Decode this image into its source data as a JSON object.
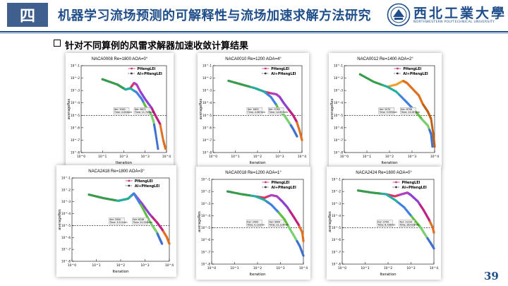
{
  "header": {
    "section_number": "四",
    "title": "机器学习流场预测的可解释性与流场加速求解方法研究",
    "university_name": "西北工業大學",
    "university_english": "NORTHWESTERN POLYTECHNICAL UNIVERSITY"
  },
  "subtitle": "针对不同算例的风雷求解器加速收敛计算结果",
  "page_number": "39",
  "colors": {
    "brand": "#1f4e8a",
    "section_box": "#3f5f8f"
  },
  "chart_data": [
    {
      "type": "scatter",
      "title": "NACA0008  Re=1800  AOA=0°",
      "xlabel": "Iteration",
      "ylabel": "averageRes",
      "xlim": [
        1,
        10000
      ],
      "ylim": [
        1e-08,
        0.1
      ],
      "legend": [
        "PHengLEI",
        "AI+PHengLEI"
      ],
      "threshold": 1e-05,
      "annotations": [
        {
          "label": "Iter: 2000\nTime: 4.004min"
        },
        {
          "label": "Iter: 6872\nTime: 11.749min"
        }
      ],
      "series": [
        {
          "name": "PHengLEI",
          "points": [
            [
              10,
              0.008
            ],
            [
              50,
              0.003
            ],
            [
              120,
              0.0012
            ],
            [
              200,
              0.0015
            ],
            [
              300,
              0.004
            ],
            [
              400,
              0.003
            ],
            [
              600,
              0.0008
            ],
            [
              1000,
              0.0002
            ],
            [
              2000,
              4e-05
            ],
            [
              3000,
              1e-05
            ],
            [
              5000,
              2e-06
            ],
            [
              7000,
              1e-07
            ],
            [
              9000,
              2e-08
            ]
          ]
        },
        {
          "name": "AI+PHengLEI",
          "points": [
            [
              10,
              0.008
            ],
            [
              50,
              0.003
            ],
            [
              120,
              0.0012
            ],
            [
              200,
              0.0015
            ],
            [
              400,
              0.0007
            ],
            [
              700,
              0.0002
            ],
            [
              1000,
              6e-05
            ],
            [
              1500,
              2e-05
            ],
            [
              2000,
              1e-05
            ],
            [
              2500,
              3e-06
            ],
            [
              3000,
              5e-07
            ],
            [
              4000,
              2e-08
            ]
          ]
        }
      ]
    },
    {
      "type": "scatter",
      "title": "NACA0010  Re=1200  AOA=4°",
      "xlabel": "Iteration",
      "ylabel": "averageRes",
      "xlim": [
        1,
        10000
      ],
      "ylim": [
        1e-08,
        0.1
      ],
      "legend": [
        "PHengLEI",
        "AI+PHengLEI"
      ],
      "threshold": 1e-05,
      "annotations": [
        {
          "label": "Iter: 1600\nTime: 4.067min"
        },
        {
          "label": "Iter: 5765\nTime: 14.653min"
        }
      ],
      "series": [
        {
          "name": "PHengLEI",
          "points": [
            [
              5,
              0.006
            ],
            [
              20,
              0.003
            ],
            [
              80,
              0.0015
            ],
            [
              200,
              0.0008
            ],
            [
              400,
              0.0006
            ],
            [
              700,
              0.0005
            ],
            [
              1000,
              0.0003
            ],
            [
              1500,
              0.0001
            ],
            [
              2500,
              3e-05
            ],
            [
              4000,
              1e-05
            ],
            [
              5800,
              3e-06
            ],
            [
              8000,
              5e-07
            ],
            [
              10000,
              1e-07
            ]
          ]
        },
        {
          "name": "AI+PHengLEI",
          "points": [
            [
              5,
              0.006
            ],
            [
              20,
              0.003
            ],
            [
              80,
              0.0015
            ],
            [
              200,
              0.0008
            ],
            [
              400,
              0.0003
            ],
            [
              700,
              7e-05
            ],
            [
              1000,
              2e-05
            ],
            [
              1600,
              1e-05
            ],
            [
              2500,
              3e-06
            ],
            [
              4000,
              8e-07
            ],
            [
              6000,
              2e-07
            ]
          ]
        }
      ]
    },
    {
      "type": "scatter",
      "title": "NACA0012  Re=1400  AOA=2°",
      "xlabel": "Iteration",
      "ylabel": "averageRes",
      "xlim": [
        1,
        10000
      ],
      "ylim": [
        1e-08,
        0.1
      ],
      "legend": [
        "PHengLEI",
        "AI+PHengLEI"
      ],
      "threshold": 1e-05,
      "annotations": [
        {
          "label": "Iter: 2070\nTime: 3.993min"
        },
        {
          "label": "Iter: 6798\nTime: 13.067min"
        }
      ],
      "series": [
        {
          "name": "PHengLEI",
          "points": [
            [
              5,
              0.02
            ],
            [
              20,
              0.005
            ],
            [
              80,
              0.002
            ],
            [
              200,
              0.003
            ],
            [
              400,
              0.006
            ],
            [
              600,
              0.004
            ],
            [
              1000,
              0.0015
            ],
            [
              2000,
              0.0004
            ],
            [
              3000,
              8e-05
            ],
            [
              5000,
              2e-05
            ],
            [
              7000,
              5e-06
            ],
            [
              9000,
              2e-07
            ],
            [
              10000,
              3e-08
            ]
          ]
        },
        {
          "name": "AI+PHengLEI",
          "points": [
            [
              5,
              0.02
            ],
            [
              20,
              0.005
            ],
            [
              80,
              0.002
            ],
            [
              200,
              0.0008
            ],
            [
              500,
              0.00015
            ],
            [
              1000,
              4e-05
            ],
            [
              2000,
              1e-05
            ],
            [
              3000,
              4e-06
            ],
            [
              5000,
              1.5e-06
            ],
            [
              7000,
              3e-07
            ],
            [
              8000,
              3e-08
            ]
          ]
        }
      ]
    },
    {
      "type": "scatter",
      "title": "NACA2418  Re=1800 AOA=3°",
      "xlabel": "Iteration",
      "ylabel": "averageRes",
      "xlim": [
        1,
        10000
      ],
      "ylim": [
        1e-08,
        0.1
      ],
      "legend": [
        "PHengLEI",
        "AI+PHengLEI"
      ],
      "threshold": 1e-05,
      "annotations": [
        {
          "label": "Iter: 2000\nTime: 3.211min"
        },
        {
          "label": "Iter: 8248\nTime: 20.228min"
        }
      ],
      "series": [
        {
          "name": "PHengLEI",
          "points": [
            [
              5,
              0.004
            ],
            [
              20,
              0.002
            ],
            [
              80,
              0.0012
            ],
            [
              200,
              0.0018
            ],
            [
              350,
              0.005
            ],
            [
              500,
              0.002
            ],
            [
              800,
              0.0006
            ],
            [
              1500,
              0.0001
            ],
            [
              3000,
              2e-05
            ],
            [
              5000,
              5e-06
            ],
            [
              8000,
              1e-06
            ],
            [
              10000,
              3e-07
            ]
          ]
        },
        {
          "name": "AI+PHengLEI",
          "points": [
            [
              5,
              0.004
            ],
            [
              20,
              0.002
            ],
            [
              80,
              0.0012
            ],
            [
              200,
              0.0018
            ],
            [
              350,
              0.005
            ],
            [
              500,
              0.0015
            ],
            [
              800,
              0.0003
            ],
            [
              1200,
              6e-05
            ],
            [
              2000,
              1e-05
            ],
            [
              3000,
              3e-06
            ],
            [
              4000,
              8e-07
            ],
            [
              5000,
              3e-07
            ]
          ]
        }
      ]
    },
    {
      "type": "scatter",
      "title": "NACA0018  Re=1200 AOA=1°",
      "xlabel": "Iteration",
      "ylabel": "averageRes",
      "xlim": [
        1,
        10000
      ],
      "ylim": [
        1e-08,
        0.1
      ],
      "legend": [
        "PHengLEI",
        "AI+PHengLEI"
      ],
      "threshold": 1e-05,
      "annotations": [
        {
          "label": "Iter: 2400\nTime: 5.112min"
        },
        {
          "label": "Iter: 9900\nTime: 21.124min"
        }
      ],
      "series": [
        {
          "name": "PHengLEI",
          "points": [
            [
              5,
              0.01
            ],
            [
              20,
              0.006
            ],
            [
              80,
              0.004
            ],
            [
              200,
              0.003
            ],
            [
              400,
              0.005
            ],
            [
              700,
              0.004
            ],
            [
              1200,
              0.0015
            ],
            [
              2000,
              0.0005
            ],
            [
              3500,
              0.0001
            ],
            [
              6000,
              2e-05
            ],
            [
              9000,
              4e-06
            ],
            [
              10000,
              8e-07
            ]
          ]
        },
        {
          "name": "AI+PHengLEI",
          "points": [
            [
              5,
              0.01
            ],
            [
              20,
              0.006
            ],
            [
              80,
              0.004
            ],
            [
              200,
              0.002
            ],
            [
              400,
              0.0008
            ],
            [
              800,
              0.0002
            ],
            [
              1500,
              5e-05
            ],
            [
              2400,
              1e-05
            ],
            [
              4000,
              2e-06
            ],
            [
              7000,
              3e-07
            ],
            [
              10000,
              5e-08
            ]
          ]
        }
      ]
    },
    {
      "type": "scatter",
      "title": "NACA2424  Re=1600  AOA=0°",
      "xlabel": "Iteration",
      "ylabel": "averageRes",
      "xlim": [
        1,
        10000
      ],
      "ylim": [
        1e-08,
        0.1
      ],
      "legend": [
        "PHengLEI",
        "AI+PHengLEI"
      ],
      "threshold": 1e-05,
      "annotations": [
        {
          "label": "Iter: 2700\nTime: 6.726min"
        },
        {
          "label": "Iter: 11133\nTime: 26.416min"
        }
      ],
      "series": [
        {
          "name": "PHengLEI",
          "points": [
            [
              5,
              0.012
            ],
            [
              20,
              0.008
            ],
            [
              80,
              0.006
            ],
            [
              200,
              0.004
            ],
            [
              400,
              0.006
            ],
            [
              700,
              0.008
            ],
            [
              1000,
              0.005
            ],
            [
              2000,
              0.0015
            ],
            [
              3500,
              0.0003
            ],
            [
              6000,
              5e-05
            ],
            [
              9000,
              1e-05
            ],
            [
              10000,
              4e-06
            ]
          ]
        },
        {
          "name": "AI+PHengLEI",
          "points": [
            [
              5,
              0.012
            ],
            [
              20,
              0.008
            ],
            [
              80,
              0.006
            ],
            [
              200,
              0.002
            ],
            [
              500,
              0.0005
            ],
            [
              1000,
              0.0001
            ],
            [
              2000,
              2e-05
            ],
            [
              2700,
              1e-05
            ],
            [
              4000,
              3e-06
            ],
            [
              7000,
              6e-07
            ],
            [
              10000,
              2e-07
            ]
          ]
        }
      ]
    }
  ]
}
